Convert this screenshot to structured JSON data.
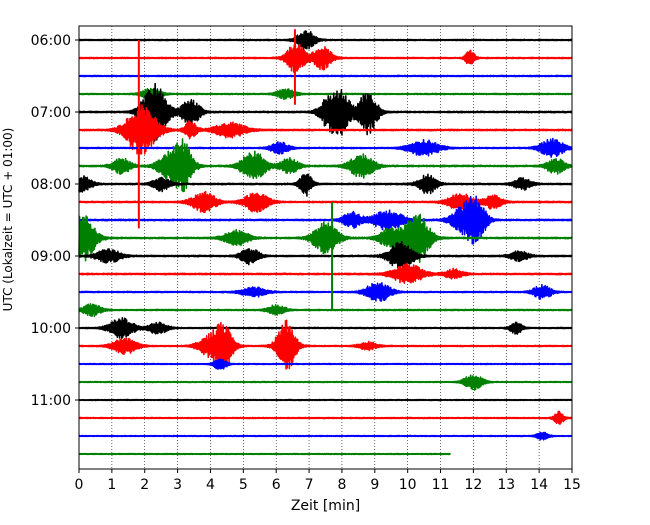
{
  "chart_data": {
    "type": "line",
    "title": "",
    "xlabel": "Zeit  [min]",
    "ylabel": "UTC (Lokalzeit = UTC + 01:00)",
    "xlim": [
      0,
      15
    ],
    "x_ticks": [
      0,
      1,
      2,
      3,
      4,
      5,
      6,
      7,
      8,
      9,
      10,
      11,
      12,
      13,
      14,
      15
    ],
    "x_tick_labels": [
      "0",
      "1",
      "2",
      "3",
      "4",
      "5",
      "6",
      "7",
      "8",
      "9",
      "10",
      "11",
      "12",
      "13",
      "14",
      "15"
    ],
    "y_tick_labels": [
      "06:00",
      "07:00",
      "08:00",
      "09:00",
      "10:00",
      "11:00"
    ],
    "y_tick_times": [
      "06:00",
      "07:00",
      "08:00",
      "09:00",
      "10:00",
      "11:00"
    ],
    "grid_x": "dotted",
    "legend": "none",
    "row_colors": [
      "#000000",
      "#ff0000",
      "#0000ff",
      "#008000"
    ],
    "series": [
      {
        "time": "06:00",
        "color": "#000000",
        "noise": 0.5,
        "end_min": 15,
        "events": [
          {
            "t": 6.9,
            "amp": 1.0,
            "dur": 0.3
          }
        ]
      },
      {
        "time": "06:15",
        "color": "#ff0000",
        "noise": 0.5,
        "end_min": 15,
        "events": [
          {
            "t": 6.6,
            "amp": 1.5,
            "dur": 0.3
          },
          {
            "t": 7.4,
            "amp": 1.2,
            "dur": 0.3
          },
          {
            "t": 11.9,
            "amp": 0.8,
            "dur": 0.15
          }
        ]
      },
      {
        "time": "06:30",
        "color": "#0000ff",
        "noise": 0.5,
        "end_min": 15,
        "events": []
      },
      {
        "time": "06:45",
        "color": "#008000",
        "noise": 0.5,
        "end_min": 15,
        "events": [
          {
            "t": 2.2,
            "amp": 0.6,
            "dur": 0.3
          },
          {
            "t": 6.3,
            "amp": 0.5,
            "dur": 0.3
          }
        ]
      },
      {
        "time": "07:00",
        "color": "#000000",
        "noise": 0.6,
        "end_min": 15,
        "events": [
          {
            "t": 2.3,
            "amp": 3.0,
            "dur": 0.4
          },
          {
            "t": 3.4,
            "amp": 1.3,
            "dur": 0.3
          },
          {
            "t": 7.6,
            "amp": 1.5,
            "dur": 0.3
          },
          {
            "t": 8.0,
            "amp": 2.0,
            "dur": 0.3
          },
          {
            "t": 8.8,
            "amp": 2.2,
            "dur": 0.3
          }
        ]
      },
      {
        "time": "07:15",
        "color": "#ff0000",
        "noise": 0.6,
        "end_min": 15,
        "events": [
          {
            "t": 1.9,
            "amp": 2.5,
            "dur": 0.5
          },
          {
            "t": 3.4,
            "amp": 0.9,
            "dur": 0.2
          },
          {
            "t": 4.6,
            "amp": 0.8,
            "dur": 0.5
          }
        ]
      },
      {
        "time": "07:30",
        "color": "#0000ff",
        "noise": 0.5,
        "end_min": 15,
        "events": [
          {
            "t": 6.1,
            "amp": 0.6,
            "dur": 0.3
          },
          {
            "t": 10.5,
            "amp": 0.8,
            "dur": 0.5
          },
          {
            "t": 14.4,
            "amp": 0.9,
            "dur": 0.4
          }
        ]
      },
      {
        "time": "07:45",
        "color": "#008000",
        "noise": 0.6,
        "end_min": 15,
        "events": [
          {
            "t": 1.3,
            "amp": 0.8,
            "dur": 0.3
          },
          {
            "t": 2.8,
            "amp": 1.5,
            "dur": 0.4
          },
          {
            "t": 3.2,
            "amp": 2.0,
            "dur": 0.3
          },
          {
            "t": 5.3,
            "amp": 1.5,
            "dur": 0.4
          },
          {
            "t": 6.4,
            "amp": 0.8,
            "dur": 0.3
          },
          {
            "t": 8.6,
            "amp": 1.2,
            "dur": 0.4
          },
          {
            "t": 14.5,
            "amp": 0.8,
            "dur": 0.3
          }
        ]
      },
      {
        "time": "08:00",
        "color": "#000000",
        "noise": 0.6,
        "end_min": 15,
        "events": [
          {
            "t": 0.1,
            "amp": 0.8,
            "dur": 0.3
          },
          {
            "t": 2.5,
            "amp": 0.7,
            "dur": 0.3
          },
          {
            "t": 6.9,
            "amp": 1.2,
            "dur": 0.2
          },
          {
            "t": 10.6,
            "amp": 1.0,
            "dur": 0.3
          },
          {
            "t": 13.5,
            "amp": 0.6,
            "dur": 0.3
          }
        ]
      },
      {
        "time": "08:15",
        "color": "#ff0000",
        "noise": 0.6,
        "end_min": 15,
        "events": [
          {
            "t": 3.8,
            "amp": 1.0,
            "dur": 0.4
          },
          {
            "t": 5.4,
            "amp": 1.0,
            "dur": 0.4
          },
          {
            "t": 11.6,
            "amp": 0.9,
            "dur": 0.4
          },
          {
            "t": 12.6,
            "amp": 0.7,
            "dur": 0.3
          }
        ]
      },
      {
        "time": "08:30",
        "color": "#0000ff",
        "noise": 0.6,
        "end_min": 15,
        "events": [
          {
            "t": 8.3,
            "amp": 0.8,
            "dur": 0.3
          },
          {
            "t": 9.4,
            "amp": 1.0,
            "dur": 0.5
          },
          {
            "t": 11.7,
            "amp": 1.3,
            "dur": 0.4
          },
          {
            "t": 12.1,
            "amp": 2.0,
            "dur": 0.3
          }
        ]
      },
      {
        "time": "08:45",
        "color": "#008000",
        "noise": 0.6,
        "end_min": 15,
        "events": [
          {
            "t": 0.1,
            "amp": 2.5,
            "dur": 0.4
          },
          {
            "t": 4.8,
            "amp": 0.8,
            "dur": 0.4
          },
          {
            "t": 7.5,
            "amp": 1.6,
            "dur": 0.4
          },
          {
            "t": 9.5,
            "amp": 1.0,
            "dur": 0.4
          },
          {
            "t": 10.3,
            "amp": 2.5,
            "dur": 0.4
          }
        ]
      },
      {
        "time": "09:00",
        "color": "#000000",
        "noise": 0.6,
        "end_min": 15,
        "events": [
          {
            "t": 0.9,
            "amp": 0.7,
            "dur": 0.4
          },
          {
            "t": 5.2,
            "amp": 0.8,
            "dur": 0.3
          },
          {
            "t": 9.8,
            "amp": 1.4,
            "dur": 0.4
          },
          {
            "t": 13.4,
            "amp": 0.5,
            "dur": 0.3
          }
        ]
      },
      {
        "time": "09:15",
        "color": "#ff0000",
        "noise": 0.6,
        "end_min": 15,
        "events": [
          {
            "t": 10.0,
            "amp": 1.0,
            "dur": 0.5
          },
          {
            "t": 11.4,
            "amp": 0.5,
            "dur": 0.3
          }
        ]
      },
      {
        "time": "09:30",
        "color": "#0000ff",
        "noise": 0.5,
        "end_min": 15,
        "events": [
          {
            "t": 5.3,
            "amp": 0.5,
            "dur": 0.4
          },
          {
            "t": 9.1,
            "amp": 1.0,
            "dur": 0.4
          },
          {
            "t": 14.1,
            "amp": 0.7,
            "dur": 0.3
          }
        ]
      },
      {
        "time": "09:45",
        "color": "#008000",
        "noise": 0.5,
        "end_min": 15,
        "events": [
          {
            "t": 0.4,
            "amp": 0.6,
            "dur": 0.3
          },
          {
            "t": 6.0,
            "amp": 0.5,
            "dur": 0.3
          }
        ]
      },
      {
        "time": "10:00",
        "color": "#000000",
        "noise": 0.5,
        "end_min": 15,
        "events": [
          {
            "t": 1.3,
            "amp": 1.0,
            "dur": 0.4
          },
          {
            "t": 2.4,
            "amp": 0.6,
            "dur": 0.3
          },
          {
            "t": 13.3,
            "amp": 0.6,
            "dur": 0.2
          }
        ]
      },
      {
        "time": "10:15",
        "color": "#ff0000",
        "noise": 0.5,
        "end_min": 15,
        "events": [
          {
            "t": 1.4,
            "amp": 0.8,
            "dur": 0.4
          },
          {
            "t": 4.0,
            "amp": 1.0,
            "dur": 0.4
          },
          {
            "t": 4.4,
            "amp": 2.0,
            "dur": 0.3
          },
          {
            "t": 6.3,
            "amp": 2.6,
            "dur": 0.3
          },
          {
            "t": 8.8,
            "amp": 0.4,
            "dur": 0.3
          }
        ]
      },
      {
        "time": "10:30",
        "color": "#0000ff",
        "noise": 0.4,
        "end_min": 15,
        "events": [
          {
            "t": 4.3,
            "amp": 0.6,
            "dur": 0.2
          }
        ]
      },
      {
        "time": "10:45",
        "color": "#008000",
        "noise": 0.4,
        "end_min": 15,
        "events": [
          {
            "t": 12.0,
            "amp": 0.8,
            "dur": 0.3
          }
        ]
      },
      {
        "time": "11:00",
        "color": "#000000",
        "noise": 0.4,
        "end_min": 15,
        "events": []
      },
      {
        "time": "11:15",
        "color": "#ff0000",
        "noise": 0.45,
        "end_min": 15,
        "events": [
          {
            "t": 14.6,
            "amp": 0.7,
            "dur": 0.15
          }
        ]
      },
      {
        "time": "11:30",
        "color": "#0000ff",
        "noise": 0.4,
        "end_min": 15,
        "events": [
          {
            "t": 14.1,
            "amp": 0.4,
            "dur": 0.2
          }
        ]
      },
      {
        "time": "11:45",
        "color": "#008000",
        "noise": 0.35,
        "end_min": 11.3,
        "events": []
      }
    ],
    "spikes": [
      {
        "time": "06:00",
        "color": "#ff0000",
        "t": 6.57,
        "top_min_offset": -9,
        "bottom_min_offset": 54
      },
      {
        "time": "07:00",
        "color": "#ff0000",
        "t": 1.82,
        "top_min_offset": -60,
        "bottom_min_offset": 97
      },
      {
        "time": "08:45",
        "color": "#008000",
        "t": 7.7,
        "top_min_offset": -30,
        "bottom_min_offset": 60
      }
    ]
  }
}
